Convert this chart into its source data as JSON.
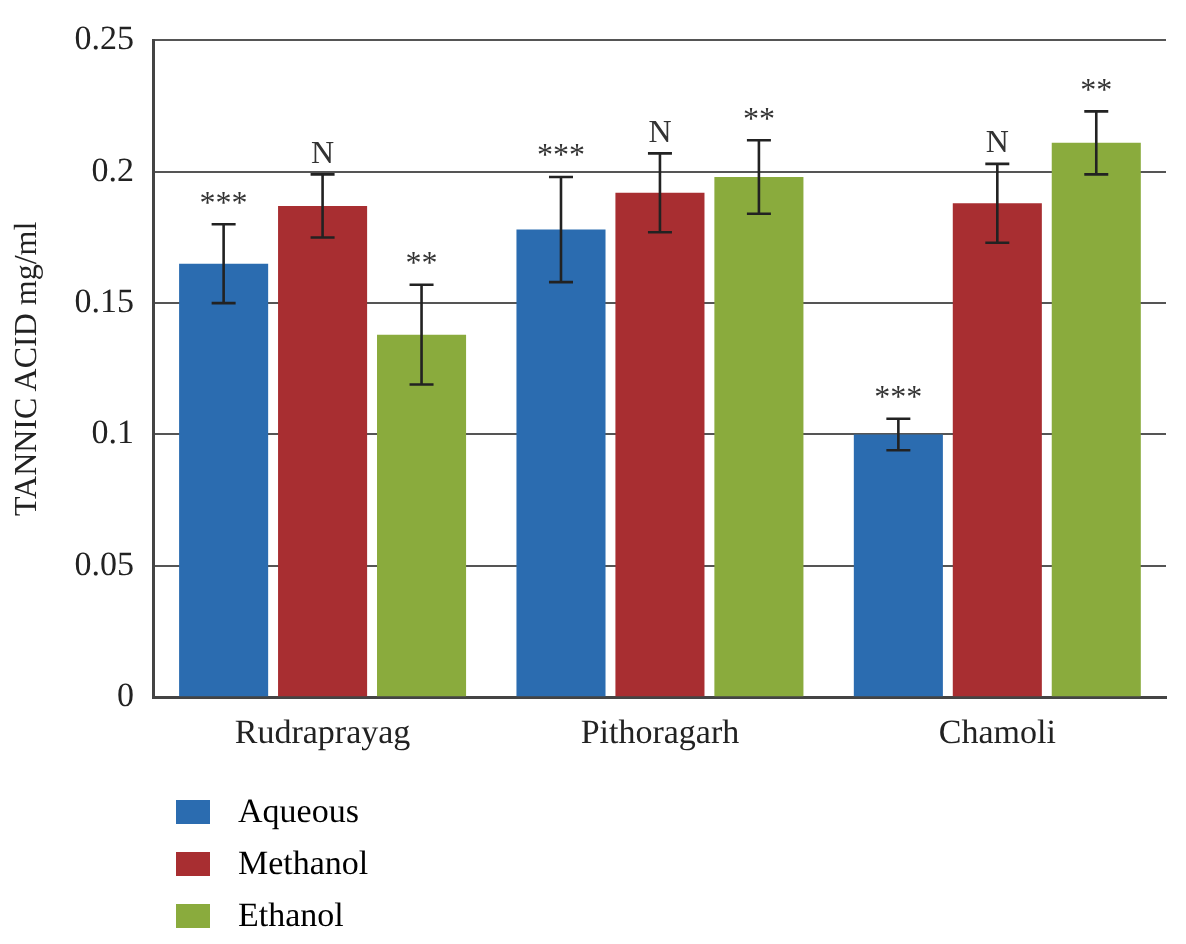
{
  "chart_data": {
    "type": "bar",
    "ylabel": "TANNIC ACID mg/ml",
    "categories": [
      "Rudraprayag",
      "Pithoragarh",
      "Chamoli"
    ],
    "series": [
      {
        "name": "Aqueous",
        "color": "#2b6cb0",
        "values": [
          0.165,
          0.178,
          0.1
        ],
        "errors": [
          0.015,
          0.02,
          0.006
        ],
        "value_labels": [
          "***",
          "***",
          "***"
        ]
      },
      {
        "name": "Methanol",
        "color": "#a82e31",
        "values": [
          0.187,
          0.192,
          0.188
        ],
        "errors": [
          0.012,
          0.015,
          0.015
        ],
        "value_labels": [
          "N",
          "N",
          "N"
        ]
      },
      {
        "name": "Ethanol",
        "color": "#8aab3d",
        "values": [
          0.138,
          0.198,
          0.211
        ],
        "errors": [
          0.019,
          0.014,
          0.012
        ],
        "value_labels": [
          "**",
          "**",
          "**"
        ]
      }
    ],
    "ylim": [
      0,
      0.25
    ],
    "yticks": [
      0,
      0.05,
      0.1,
      {
        "value": 0.15,
        "label": "0.15"
      },
      0.2,
      0.25
    ],
    "grid": "y",
    "legend": "bottom left"
  }
}
